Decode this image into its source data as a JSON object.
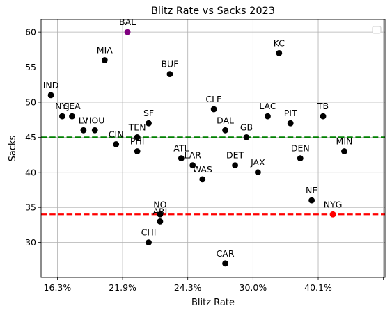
{
  "chart_data": {
    "type": "scatter",
    "title": "Blitz Rate vs Sacks 2023",
    "xlabel": "Blitz Rate",
    "ylabel": "Sacks",
    "x_tick_labels": [
      "16.3%",
      "21.9%",
      "24.3%",
      "30.0%",
      "40.1%",
      ""
    ],
    "x_tick_positions": [
      1,
      5,
      9,
      13,
      17,
      21
    ],
    "xlim": [
      0,
      21.1
    ],
    "y_ticks": [
      30,
      35,
      40,
      45,
      50,
      55,
      60
    ],
    "ylim": [
      25,
      61.8
    ],
    "grid": true,
    "legend_placement": "top-right",
    "reference_lines": [
      {
        "y": 45,
        "color": "#008000",
        "style": "dashed"
      },
      {
        "y": 34,
        "color": "#ff0000",
        "style": "dashed"
      }
    ],
    "colors": {
      "default": "#000000",
      "BAL": "#800080",
      "NYG": "#ff0000"
    },
    "points": [
      {
        "team": "IND",
        "x": 0.6,
        "y": 51
      },
      {
        "team": "NYJ",
        "x": 1.3,
        "y": 48
      },
      {
        "team": "SEA",
        "x": 1.9,
        "y": 48
      },
      {
        "team": "LV",
        "x": 2.6,
        "y": 46
      },
      {
        "team": "HOU",
        "x": 3.3,
        "y": 46
      },
      {
        "team": "MIA",
        "x": 3.9,
        "y": 56
      },
      {
        "team": "CIN",
        "x": 4.6,
        "y": 44
      },
      {
        "team": "BAL",
        "x": 5.3,
        "y": 60
      },
      {
        "team": "TEN",
        "x": 5.9,
        "y": 45
      },
      {
        "team": "PHI",
        "x": 5.9,
        "y": 43
      },
      {
        "team": "SF",
        "x": 6.6,
        "y": 47
      },
      {
        "team": "CHI",
        "x": 6.6,
        "y": 30
      },
      {
        "team": "NO",
        "x": 7.3,
        "y": 34
      },
      {
        "team": "ARI",
        "x": 7.3,
        "y": 33
      },
      {
        "team": "BUF",
        "x": 7.9,
        "y": 54
      },
      {
        "team": "ATL",
        "x": 8.6,
        "y": 42
      },
      {
        "team": "LAR",
        "x": 9.3,
        "y": 41
      },
      {
        "team": "WAS",
        "x": 9.9,
        "y": 39
      },
      {
        "team": "CLE",
        "x": 10.6,
        "y": 49
      },
      {
        "team": "DAL",
        "x": 11.3,
        "y": 46
      },
      {
        "team": "CAR",
        "x": 11.3,
        "y": 27
      },
      {
        "team": "DET",
        "x": 11.9,
        "y": 41
      },
      {
        "team": "GB",
        "x": 12.6,
        "y": 45
      },
      {
        "team": "JAX",
        "x": 13.3,
        "y": 40
      },
      {
        "team": "LAC",
        "x": 13.9,
        "y": 48
      },
      {
        "team": "KC",
        "x": 14.6,
        "y": 57
      },
      {
        "team": "PIT",
        "x": 15.3,
        "y": 47
      },
      {
        "team": "DEN",
        "x": 15.9,
        "y": 42
      },
      {
        "team": "NE",
        "x": 16.6,
        "y": 36
      },
      {
        "team": "TB",
        "x": 17.3,
        "y": 48
      },
      {
        "team": "NYG",
        "x": 17.9,
        "y": 34
      },
      {
        "team": "MIN",
        "x": 18.6,
        "y": 43
      }
    ]
  }
}
